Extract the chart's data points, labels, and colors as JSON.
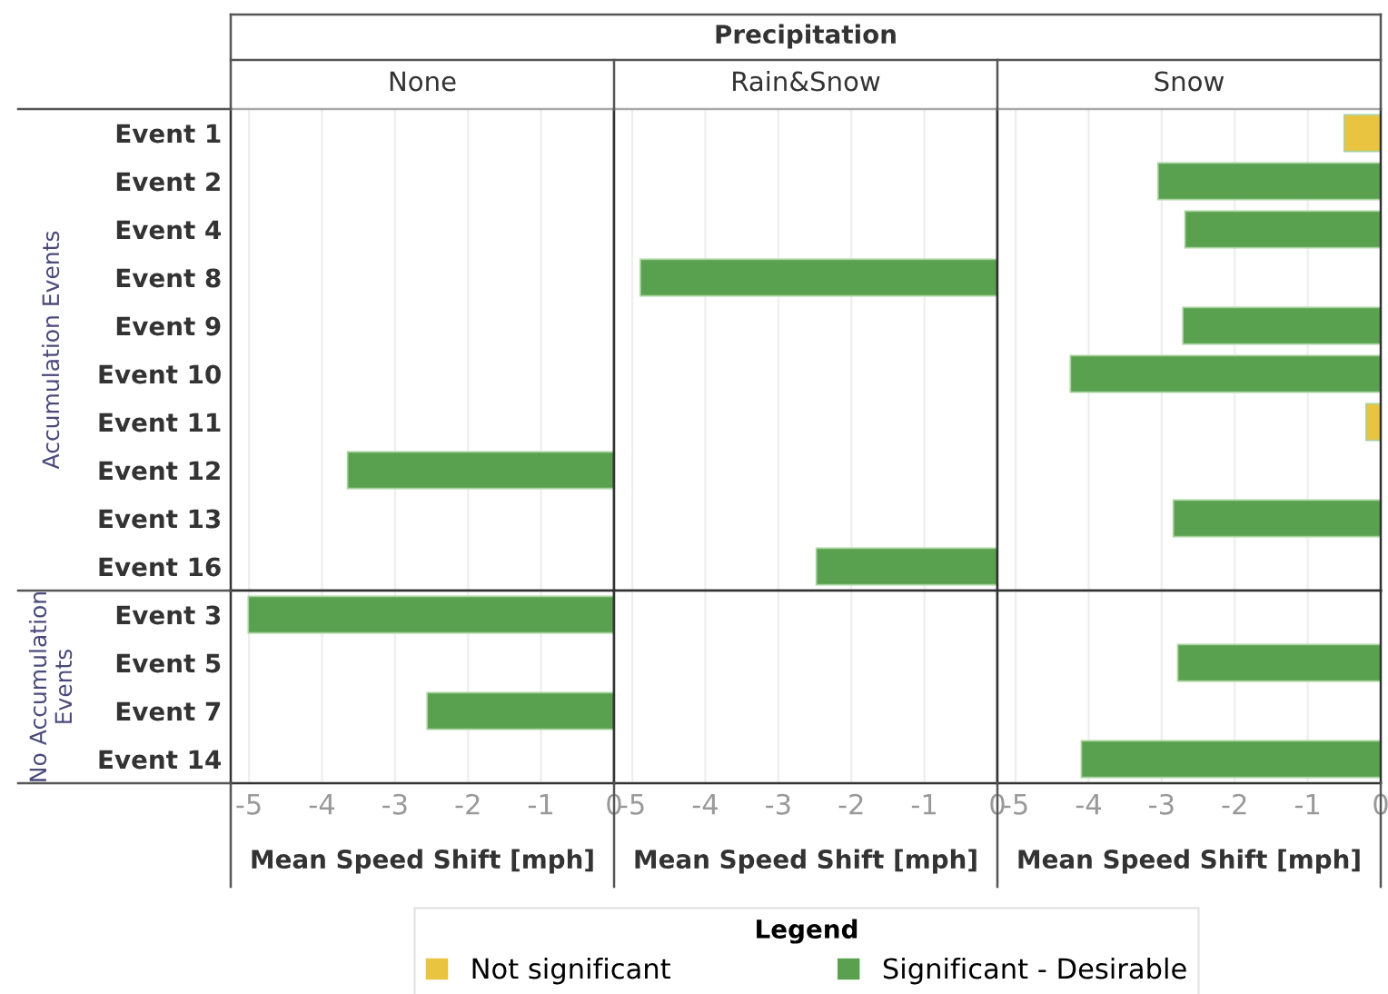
{
  "chart_data": [
    {
      "type": "bar",
      "orientation": "horizontal",
      "title": "None",
      "ylabel": "Accumulation Events",
      "annotations": [
        "Precipitation"
      ],
      "categories": [
        "Event 1",
        "Event 2",
        "Event 4",
        "Event 8",
        "Event 9",
        "Event 10",
        "Event 11",
        "Event 12",
        "Event 13",
        "Event 16"
      ],
      "series": [
        {
          "name": "Not significant",
          "color": "#e9c440",
          "values": [
            null,
            null,
            null,
            null,
            null,
            null,
            null,
            null,
            null,
            null
          ]
        },
        {
          "name": "Significant - Desirable",
          "color": "#59a14f",
          "values": [
            null,
            null,
            null,
            null,
            null,
            null,
            null,
            -3.65,
            null,
            null
          ]
        }
      ],
      "xlim": [
        -5.25,
        0
      ],
      "xticks": [
        -5,
        -4,
        -3,
        -2,
        -1,
        0
      ],
      "grid": "x",
      "tick_labels": "y",
      "legend": "bottom",
      "legend_title": "Legend"
    },
    {
      "type": "bar",
      "orientation": "horizontal",
      "title": "Rain&Snow",
      "categories": [
        null,
        null,
        null,
        null,
        null,
        null,
        null,
        null,
        null,
        null
      ],
      "series": [
        {
          "color": "#59a14f",
          "values": [
            null,
            null,
            null,
            -4.89,
            null,
            null,
            null,
            null,
            null,
            -2.48
          ]
        }
      ],
      "xlim": [
        -5.25,
        0
      ],
      "xticks": [
        -5,
        -4,
        -3,
        -2,
        -1,
        0
      ],
      "grid": "x",
      "tick_labels": false
    },
    {
      "type": "bar",
      "orientation": "horizontal",
      "title": "Snow",
      "categories": [
        null,
        null,
        null,
        null,
        null,
        null,
        null,
        null,
        null,
        null
      ],
      "series": [
        {
          "color": "#e9c440",
          "values": [
            -0.5,
            null,
            null,
            null,
            null,
            null,
            -0.2,
            null,
            null,
            null
          ]
        },
        {
          "color": "#59a14f",
          "values": [
            null,
            -3.05,
            -2.68,
            null,
            -2.71,
            -4.25,
            null,
            null,
            -2.84,
            null
          ]
        }
      ],
      "xlim": [
        -5.25,
        0
      ],
      "xticks": [
        -5,
        -4,
        -3,
        -2,
        -1,
        0
      ],
      "grid": "x",
      "tick_labels": false
    },
    {
      "type": "bar",
      "orientation": "horizontal",
      "xlabel": "Mean Speed Shift [mph]",
      "ylabel": "No Accumulation\nEvents",
      "categories": [
        "Event 3",
        "Event 5",
        "Event 7",
        "Event 14"
      ],
      "series": [
        {
          "color": "#59a14f",
          "values": [
            -5.01,
            null,
            -2.56,
            null
          ]
        }
      ],
      "xlim": [
        -5.25,
        0
      ],
      "xticks": [
        -5,
        -4,
        -3,
        -2,
        -1,
        0
      ],
      "grid": "x"
    },
    {
      "type": "bar",
      "orientation": "horizontal",
      "xlabel": "Mean Speed Shift [mph]",
      "categories": [
        null,
        null,
        null,
        null
      ],
      "xlim": [
        -5.25,
        0
      ],
      "xticks": [
        -5,
        -4,
        -3,
        -2,
        -1,
        0
      ],
      "grid": "x",
      "tick_labels": "x"
    },
    {
      "type": "bar",
      "orientation": "horizontal",
      "xlabel": "Mean Speed Shift [mph]",
      "categories": [
        null,
        null,
        null,
        null
      ],
      "series": [
        {
          "color": "#59a14f",
          "values": [
            null,
            -2.78,
            null,
            -4.1
          ]
        }
      ],
      "xlim": [
        -5.25,
        0
      ],
      "xticks": [
        -5,
        -4,
        -3,
        -2,
        -1,
        0
      ],
      "grid": "x",
      "tick_labels": "x"
    }
  ]
}
